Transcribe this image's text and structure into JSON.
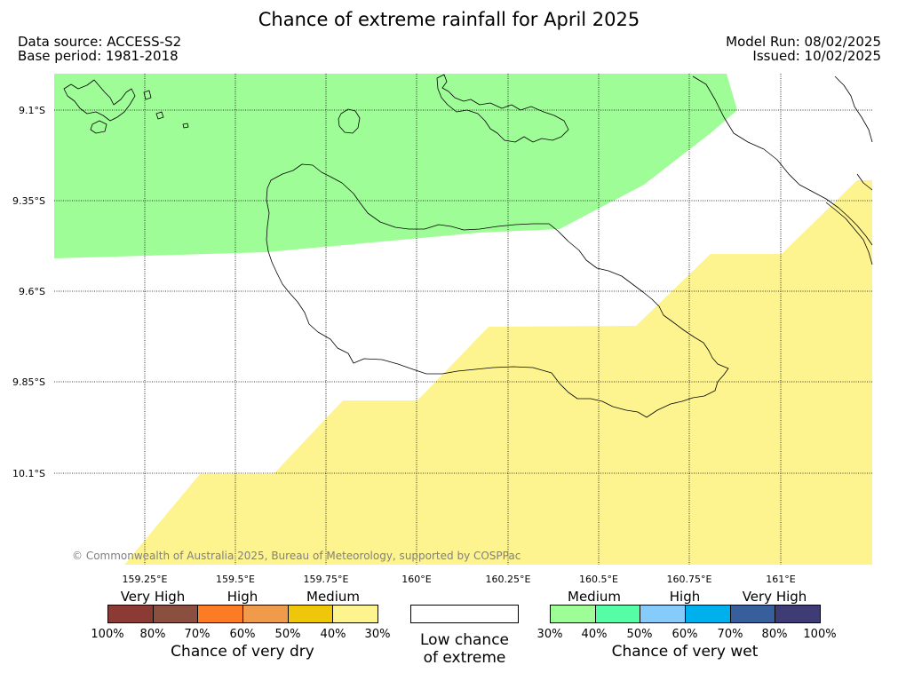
{
  "title": "Chance of extreme rainfall for April 2025",
  "header": {
    "data_source": "Data source: ACCESS-S2",
    "base_period": "Base period: 1981-2018",
    "model_run": "Model Run: 08/02/2025",
    "issued": "Issued: 10/02/2025"
  },
  "map": {
    "lat_labels": [
      "9.1°S",
      "9.35°S",
      "9.6°S",
      "9.85°S",
      "10.1°S"
    ],
    "lon_labels": [
      "159.25°E",
      "159.5°E",
      "159.75°E",
      "160°E",
      "160.25°E",
      "160.5°E",
      "160.75°E",
      "161°E"
    ],
    "copyright": "© Commonwealth of Australia 2025, Bureau of Meteorology, supported by COSPPac",
    "colors": {
      "wet_medium": "#9ffd97",
      "dry_medium": "#fdf48f",
      "coast": "#000000",
      "grid": "#000000"
    }
  },
  "legend": {
    "dry": {
      "categories": [
        "Very High",
        "High",
        "Medium"
      ],
      "colors": [
        "#8b3b33",
        "#8b4f3f",
        "#fc7b24",
        "#f09b4c",
        "#eec70a",
        "#fdf48f"
      ],
      "ticks": [
        "100%",
        "80%",
        "70%",
        "60%",
        "50%",
        "40%",
        "30%"
      ],
      "title": "Chance of very dry"
    },
    "low": {
      "line1": "Low chance",
      "line2": "of extreme"
    },
    "wet": {
      "categories": [
        "Medium",
        "High",
        "Very High"
      ],
      "colors": [
        "#9ffd97",
        "#55fda6",
        "#87cbfb",
        "#00b0ed",
        "#365f9b",
        "#3f3b75"
      ],
      "ticks": [
        "30%",
        "40%",
        "50%",
        "60%",
        "70%",
        "80%",
        "100%"
      ],
      "title": "Chance of very wet"
    }
  }
}
